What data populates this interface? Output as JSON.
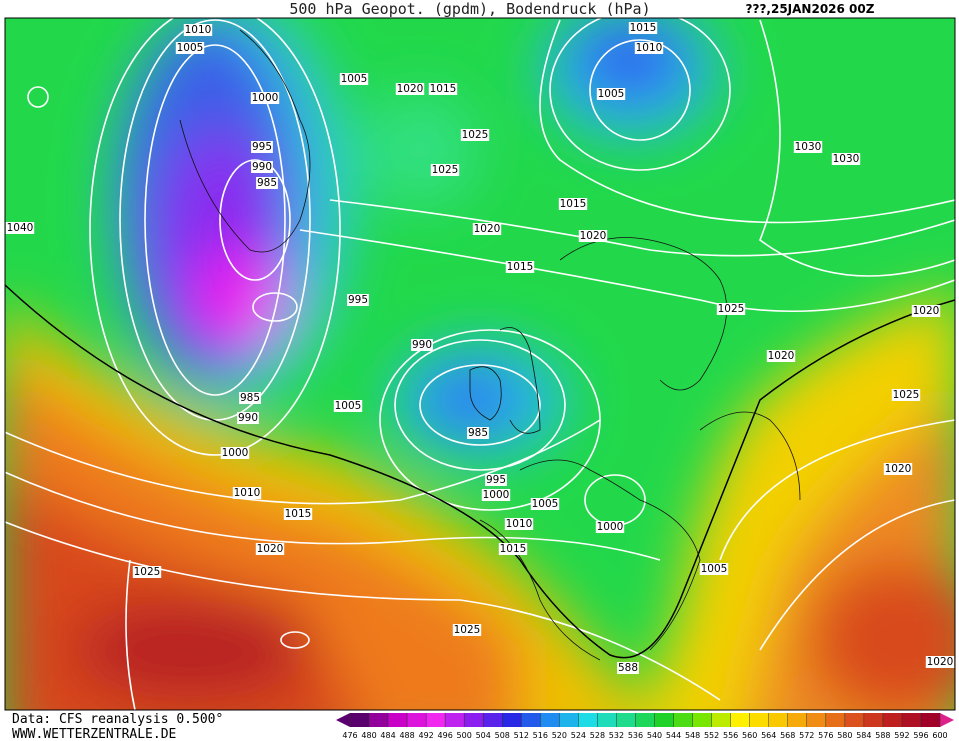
{
  "header": {
    "title": "500 hPa Geopot. (gpdm), Bodendruck (hPa)",
    "run": "???,25JAN2026 00Z"
  },
  "footer": {
    "source": "Data: CFS reanalysis 0.500°",
    "site": "WWW.WETTERZENTRALE.DE"
  },
  "colorbar": {
    "ticks": [
      476,
      480,
      484,
      488,
      492,
      496,
      500,
      504,
      508,
      512,
      516,
      520,
      524,
      528,
      532,
      536,
      540,
      544,
      548,
      552,
      556,
      560,
      564,
      568,
      572,
      576,
      580,
      584,
      588,
      592,
      596,
      600
    ]
  },
  "isobar_labels": [
    "1010",
    "1005",
    "1000",
    "995",
    "990",
    "985",
    "1040",
    "985",
    "990",
    "995",
    "990",
    "1005",
    "985",
    "1000",
    "1010",
    "1015",
    "1020",
    "1025",
    "1025",
    "995",
    "1000",
    "1005",
    "1010",
    "1015",
    "1000",
    "1005",
    "588",
    "1005",
    "1020",
    "1015",
    "1025",
    "1025",
    "1020",
    "1015",
    "1020",
    "1015",
    "1015",
    "1010",
    "1005",
    "1030",
    "1030",
    "1025",
    "1020",
    "1020",
    "1025",
    "1020",
    "1020"
  ]
}
